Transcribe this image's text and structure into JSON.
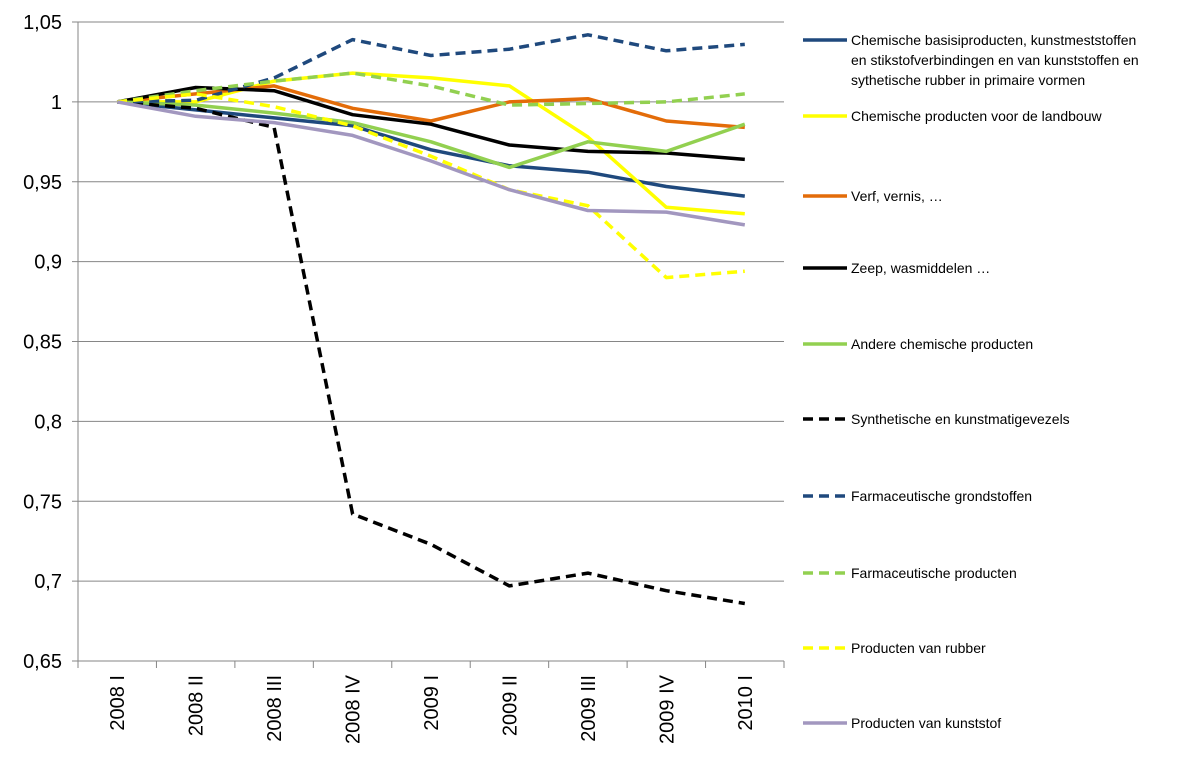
{
  "chart_data": {
    "type": "line",
    "title": "",
    "xlabel": "",
    "ylabel": "",
    "ylim": [
      0.65,
      1.05
    ],
    "ytick_step": 0.05,
    "y_tick_labels": [
      "0,65",
      "0,7",
      "0,75",
      "0,8",
      "0,85",
      "0,9",
      "0,95",
      "1",
      "1,05"
    ],
    "grid": "horizontal",
    "legend_position": "right",
    "categories": [
      "2008 I",
      "2008 II",
      "2008 III",
      "2008 IV",
      "2009 I",
      "2009 II",
      "2009 III",
      "2009 IV",
      "2010 I"
    ],
    "series": [
      {
        "name_lines": [
          "Chemische basisiproducten, kunstmeststoffen",
          "en stikstofverbindingen en van kunststoffen en",
          "sythetische rubber in primaire vormen"
        ],
        "color": "#1f497d",
        "dash": "solid",
        "values": [
          1.0,
          0.995,
          0.99,
          0.985,
          0.97,
          0.96,
          0.956,
          0.947,
          0.941
        ]
      },
      {
        "name_lines": [
          "Chemische producten voor de landbouw"
        ],
        "color": "#ffff00",
        "dash": "solid",
        "values": [
          1.0,
          1.0,
          1.013,
          1.018,
          1.015,
          1.01,
          0.978,
          0.934,
          0.93
        ]
      },
      {
        "name_lines": [
          "Verf, vernis, …"
        ],
        "color": "#e36c09",
        "dash": "solid",
        "values": [
          1.0,
          1.005,
          1.01,
          0.996,
          0.988,
          1.0,
          1.002,
          0.988,
          0.984
        ]
      },
      {
        "name_lines": [
          "Zeep, wasmiddelen …"
        ],
        "color": "#000000",
        "dash": "solid",
        "values": [
          1.0,
          1.009,
          1.007,
          0.992,
          0.986,
          0.973,
          0.969,
          0.968,
          0.964
        ]
      },
      {
        "name_lines": [
          "Andere chemische producten"
        ],
        "color": "#92d050",
        "dash": "solid",
        "values": [
          1.0,
          0.998,
          0.993,
          0.987,
          0.975,
          0.959,
          0.975,
          0.969,
          0.986
        ]
      },
      {
        "name_lines": [
          "Synthetische en kunstmatigevezels"
        ],
        "color": "#000000",
        "dash": "dashed",
        "values": [
          1.0,
          0.996,
          0.984,
          0.742,
          0.723,
          0.697,
          0.705,
          0.694,
          0.686
        ]
      },
      {
        "name_lines": [
          "Farmaceutische grondstoffen"
        ],
        "color": "#1f497d",
        "dash": "dashed",
        "values": [
          1.0,
          1.001,
          1.015,
          1.039,
          1.029,
          1.033,
          1.042,
          1.032,
          1.036
        ]
      },
      {
        "name_lines": [
          "Farmaceutische producten"
        ],
        "color": "#92d050",
        "dash": "dashed",
        "values": [
          1.0,
          1.007,
          1.013,
          1.018,
          1.01,
          0.998,
          0.999,
          1.0,
          1.005
        ]
      },
      {
        "name_lines": [
          "Producten van rubber"
        ],
        "color": "#ffff00",
        "dash": "dashed",
        "values": [
          1.0,
          1.005,
          0.997,
          0.985,
          0.966,
          0.945,
          0.935,
          0.89,
          0.894
        ]
      },
      {
        "name_lines": [
          "Producten van kunststof"
        ],
        "color": "#a297bf",
        "dash": "solid",
        "values": [
          1.0,
          0.991,
          0.987,
          0.979,
          0.963,
          0.945,
          0.932,
          0.931,
          0.923
        ]
      }
    ]
  }
}
